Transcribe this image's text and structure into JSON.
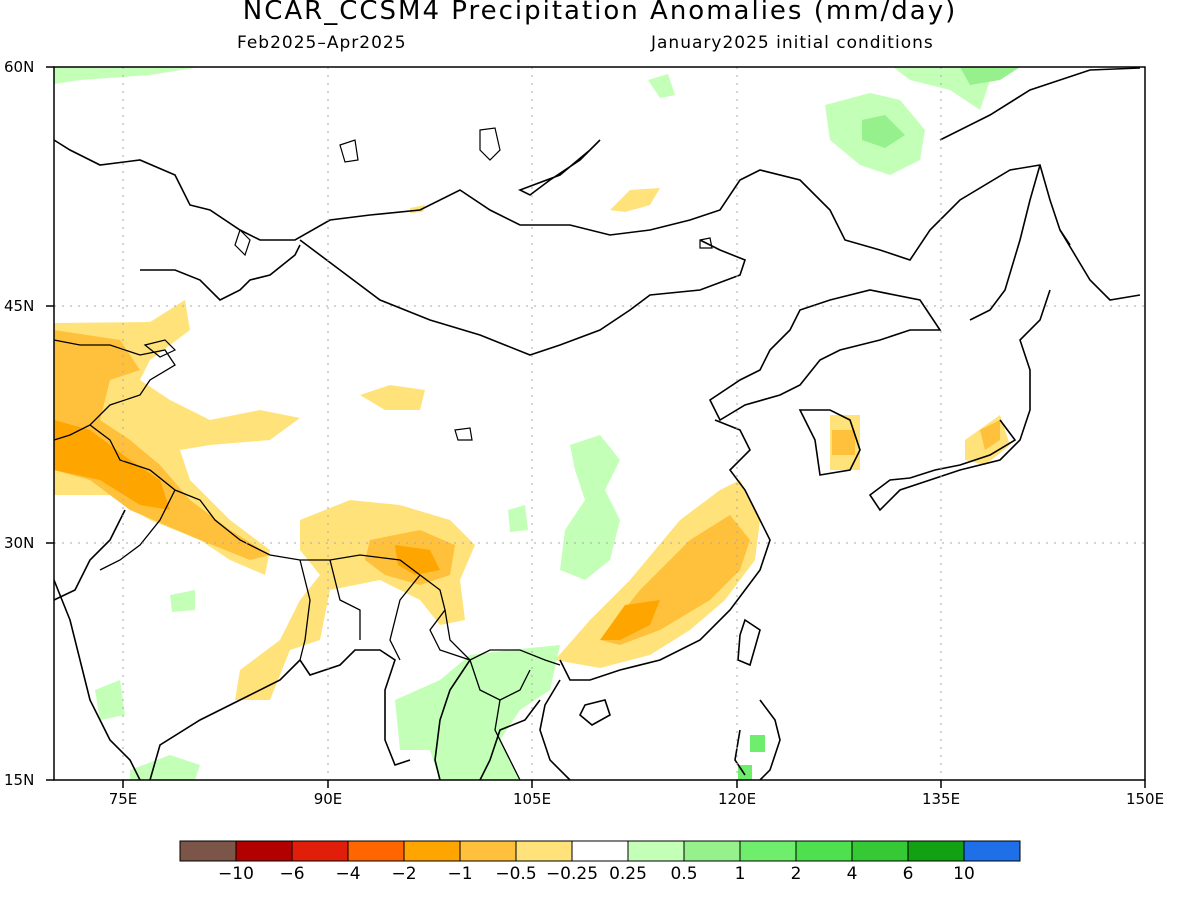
{
  "title": "NCAR_CCSM4 Precipitation Anomalies (mm/day)",
  "subtitle_left": "Feb2025–Apr2025",
  "subtitle_right": "January2025 initial conditions",
  "axes": {
    "y_ticks": [
      "60N",
      "45N",
      "30N",
      "15N"
    ],
    "x_ticks": [
      "75E",
      "90E",
      "105E",
      "120E",
      "135E",
      "150E"
    ],
    "lon_range": [
      70,
      150
    ],
    "lat_range": [
      15,
      60
    ]
  },
  "colorbar": {
    "colors": [
      "#7b5548",
      "#b20000",
      "#e01e0a",
      "#ff6600",
      "#ffa500",
      "#ffc03c",
      "#ffe37a",
      "#ffffff",
      "#c3ffb7",
      "#96f08c",
      "#6fee6d",
      "#4ee04e",
      "#35c935",
      "#12a112",
      "#1f6fe8"
    ],
    "labels": [
      "−10",
      "−6",
      "−4",
      "−2",
      "−1",
      "−0.5",
      "−0.25",
      "0.25",
      "0.5",
      "1",
      "2",
      "4",
      "6",
      "10"
    ]
  }
}
